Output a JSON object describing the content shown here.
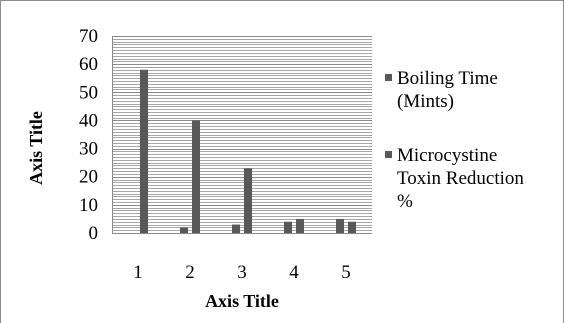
{
  "chart_data": {
    "type": "bar",
    "categories": [
      "1",
      "2",
      "3",
      "4",
      "5"
    ],
    "series": [
      {
        "name": "Boiling Time (Mints)",
        "values": [
          0,
          2,
          3,
          4,
          5
        ],
        "color": "#595959"
      },
      {
        "name": "Microcystine Toxin Reduction %",
        "values": [
          58,
          40,
          23,
          5,
          4
        ],
        "color": "#595959"
      }
    ],
    "title": "",
    "xlabel": "Axis Title",
    "ylabel": "Axis Title",
    "ylim": [
      0,
      70
    ],
    "yticks": [
      "0",
      "10",
      "20",
      "30",
      "40",
      "50",
      "60",
      "70"
    ],
    "grid": true,
    "legend_position": "right"
  },
  "legend": {
    "entries": [
      {
        "lines": [
          "Boiling Time",
          "(Mints)"
        ]
      },
      {
        "lines": [
          "Microcystine",
          "Toxin Reduction",
          "%"
        ]
      }
    ]
  }
}
